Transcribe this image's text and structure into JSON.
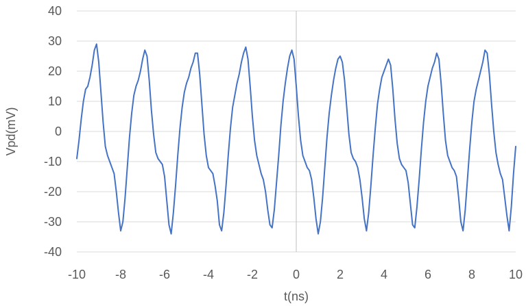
{
  "chart_data": {
    "type": "line",
    "title": "",
    "xlabel": "t(ns)",
    "ylabel": "Vpd(mV)",
    "xlim": [
      -10,
      10
    ],
    "ylim": [
      -40,
      40
    ],
    "xticks": [
      -10,
      -8,
      -6,
      -4,
      -2,
      0,
      2,
      4,
      6,
      8,
      10
    ],
    "yticks": [
      -40,
      -30,
      -20,
      -10,
      0,
      10,
      20,
      30,
      40
    ],
    "grid": true,
    "legend": "none",
    "color": "#4472c4",
    "series": [
      {
        "x": [
          -10,
          -9.9,
          -9.8,
          -9.7,
          -9.6,
          -9.5,
          -9.4,
          -9.3,
          -9.2,
          -9.1,
          -9.0,
          -8.9,
          -8.8,
          -8.7,
          -8.6,
          -8.5,
          -8.4,
          -8.3,
          -8.2,
          -8.1,
          -8.0,
          -7.9,
          -7.8,
          -7.7,
          -7.6,
          -7.5,
          -7.4,
          -7.3,
          -7.2,
          -7.1,
          -7.0,
          -6.9,
          -6.8,
          -6.7,
          -6.6,
          -6.5,
          -6.4,
          -6.3,
          -6.2,
          -6.1,
          -6.0,
          -5.9,
          -5.8,
          -5.7,
          -5.6,
          -5.5,
          -5.4,
          -5.3,
          -5.2,
          -5.1,
          -5.0,
          -4.9,
          -4.8,
          -4.7,
          -4.6,
          -4.5,
          -4.4,
          -4.3,
          -4.2,
          -4.1,
          -4.0,
          -3.9,
          -3.8,
          -3.7,
          -3.6,
          -3.5,
          -3.4,
          -3.3,
          -3.2,
          -3.1,
          -3.0,
          -2.9,
          -2.8,
          -2.7,
          -2.6,
          -2.5,
          -2.4,
          -2.3,
          -2.2,
          -2.1,
          -2.0,
          -1.9,
          -1.8,
          -1.7,
          -1.6,
          -1.5,
          -1.4,
          -1.3,
          -1.2,
          -1.1,
          -1.0,
          -0.9,
          -0.8,
          -0.7,
          -0.6,
          -0.5,
          -0.4,
          -0.3,
          -0.2,
          -0.1,
          0.0,
          0.1,
          0.2,
          0.3,
          0.4,
          0.5,
          0.6,
          0.7,
          0.8,
          0.9,
          1.0,
          1.1,
          1.2,
          1.3,
          1.4,
          1.5,
          1.6,
          1.7,
          1.8,
          1.9,
          2.0,
          2.1,
          2.2,
          2.3,
          2.4,
          2.5,
          2.6,
          2.7,
          2.8,
          2.9,
          3.0,
          3.1,
          3.2,
          3.3,
          3.4,
          3.5,
          3.6,
          3.7,
          3.8,
          3.9,
          4.0,
          4.1,
          4.2,
          4.3,
          4.4,
          4.5,
          4.6,
          4.7,
          4.8,
          4.9,
          5.0,
          5.1,
          5.2,
          5.3,
          5.4,
          5.5,
          5.6,
          5.7,
          5.8,
          5.9,
          6.0,
          6.1,
          6.2,
          6.3,
          6.4,
          6.5,
          6.6,
          6.7,
          6.8,
          6.9,
          7.0,
          7.1,
          7.2,
          7.3,
          7.4,
          7.5,
          7.6,
          7.7,
          7.8,
          7.9,
          8.0,
          8.1,
          8.2,
          8.3,
          8.4,
          8.5,
          8.6,
          8.7,
          8.8,
          8.9,
          9.0,
          9.1,
          9.2,
          9.3,
          9.4,
          9.5,
          9.6,
          9.7,
          9.8,
          9.9,
          10.0
        ],
        "y": [
          -9,
          -3,
          4,
          10,
          14,
          15,
          18,
          22,
          27,
          29,
          23,
          13,
          3,
          -5,
          -8,
          -10,
          -12,
          -14,
          -20,
          -27,
          -33,
          -30,
          -22,
          -12,
          -2,
          6,
          12,
          15,
          17,
          20,
          24,
          27,
          25,
          17,
          7,
          -1,
          -7,
          -9,
          -10,
          -11,
          -15,
          -23,
          -31,
          -34,
          -27,
          -18,
          -8,
          1,
          8,
          13,
          16,
          18,
          21,
          23,
          26,
          26,
          19,
          9,
          -1,
          -8,
          -12,
          -13,
          -14,
          -18,
          -23,
          -31,
          -33,
          -27,
          -18,
          -8,
          1,
          8,
          12,
          16,
          19,
          23,
          26,
          28,
          24,
          15,
          5,
          -3,
          -8,
          -11,
          -14,
          -16,
          -20,
          -26,
          -31,
          -32,
          -26,
          -17,
          -8,
          2,
          10,
          16,
          21,
          25,
          27,
          24,
          15,
          5,
          -3,
          -8,
          -10,
          -12,
          -13,
          -16,
          -22,
          -29,
          -34,
          -30,
          -22,
          -12,
          -2,
          6,
          12,
          17,
          21,
          24,
          25,
          23,
          17,
          8,
          -1,
          -7,
          -9,
          -10,
          -12,
          -16,
          -22,
          -29,
          -33,
          -27,
          -18,
          -8,
          1,
          9,
          14,
          18,
          20,
          22,
          24,
          22,
          14,
          4,
          -4,
          -9,
          -11,
          -12,
          -13,
          -17,
          -24,
          -31,
          -32,
          -25,
          -16,
          -6,
          3,
          10,
          15,
          18,
          21,
          23,
          26,
          24,
          16,
          6,
          -3,
          -8,
          -10,
          -12,
          -13,
          -15,
          -22,
          -30,
          -33,
          -26,
          -16,
          -6,
          3,
          10,
          14,
          17,
          20,
          23,
          27,
          26,
          19,
          9,
          0,
          -7,
          -11,
          -14,
          -16,
          -22,
          -28,
          -33,
          -25,
          -14,
          -5
        ]
      }
    ]
  }
}
